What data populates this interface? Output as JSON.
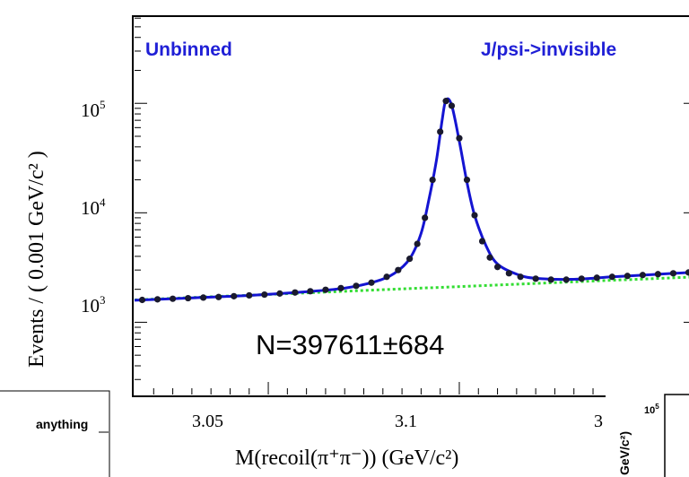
{
  "chart_data": [
    {
      "type": "scatter",
      "xlabel": "M(recoil(π⁺π⁻)) (GeV/c²)",
      "ylabel": "Events / ( 0.001 GeV/c² )",
      "y_scale": "log",
      "x_ticks": [
        "3.05",
        "3.1",
        "3"
      ],
      "y_ticks": [
        {
          "base": "10",
          "exp": "5",
          "value": 100000
        },
        {
          "base": "10",
          "exp": "4",
          "value": 10000
        },
        {
          "base": "10",
          "exp": "3",
          "value": 1000
        }
      ],
      "annotations": {
        "left": "Unbinned",
        "right": "J/psi->invisible",
        "yield": "N=397611±684"
      },
      "xlim": [
        3.015,
        3.162
      ],
      "ylim_log10": [
        2.34,
        5.78
      ],
      "colors": {
        "data": "#1a1a2e",
        "fit": "#1414d2",
        "background": "#33dd33",
        "label": "#1f1fd6"
      },
      "series": [
        {
          "x": [
            3.017,
            3.021,
            3.025,
            3.029,
            3.033,
            3.037,
            3.041,
            3.045,
            3.049,
            3.053,
            3.057,
            3.061,
            3.065,
            3.069,
            3.073,
            3.077,
            3.081,
            3.084,
            3.087,
            3.089,
            3.091,
            3.093,
            3.095,
            3.0965,
            3.098,
            3.1,
            3.102,
            3.104,
            3.106,
            3.108,
            3.11,
            3.113,
            3.116,
            3.12,
            3.124,
            3.128,
            3.132,
            3.136,
            3.14,
            3.144,
            3.148,
            3.152,
            3.156,
            3.16
          ],
          "y": [
            1600,
            1620,
            1640,
            1660,
            1680,
            1700,
            1730,
            1760,
            1790,
            1830,
            1870,
            1920,
            1980,
            2050,
            2150,
            2300,
            2600,
            3000,
            3800,
            5200,
            9000,
            20000,
            55000,
            105000,
            95000,
            48000,
            20000,
            9500,
            5500,
            3900,
            3200,
            2800,
            2600,
            2500,
            2450,
            2450,
            2500,
            2550,
            2600,
            2650,
            2700,
            2750,
            2800,
            2850
          ]
        }
      ],
      "fit_curve": {
        "x": [
          3.015,
          3.03,
          3.045,
          3.06,
          3.07,
          3.078,
          3.083,
          3.087,
          3.09,
          3.092,
          3.094,
          3.0955,
          3.0965,
          3.098,
          3.1,
          3.102,
          3.104,
          3.107,
          3.11,
          3.115,
          3.12,
          3.13,
          3.14,
          3.15,
          3.162
        ],
        "y": [
          1590,
          1670,
          1760,
          1900,
          2050,
          2350,
          2800,
          3800,
          6500,
          13000,
          30000,
          70000,
          107000,
          96000,
          45000,
          19000,
          9500,
          5000,
          3400,
          2750,
          2520,
          2470,
          2600,
          2720,
          2870
        ]
      },
      "background_line": {
        "x": [
          3.015,
          3.162
        ],
        "y": [
          1600,
          2600
        ]
      }
    },
    {
      "type": "scatter",
      "title": "anything",
      "note": "inset plot, partially visible"
    },
    {
      "type": "scatter",
      "ylabel": "GeV/c²)",
      "y_ticks": [
        {
          "base": "10",
          "exp": "5",
          "value": 100000
        }
      ],
      "note": "inset plot, partially visible"
    }
  ]
}
